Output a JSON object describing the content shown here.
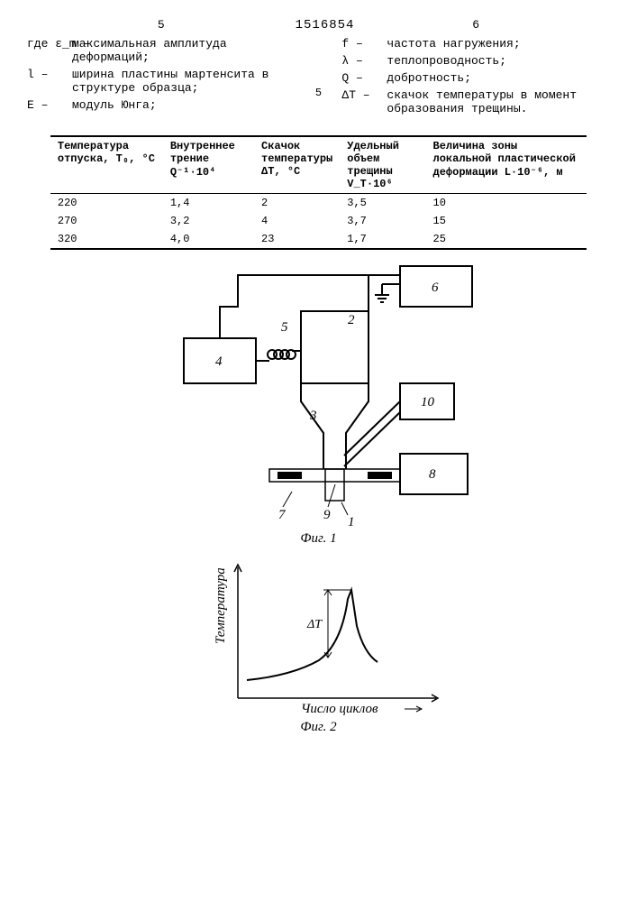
{
  "doc_id": "1516854",
  "left_page_num": "5",
  "right_page_num": "6",
  "defs_left": [
    {
      "sym": "где ε_m –",
      "txt": "максимальная амплитуда деформаций;"
    },
    {
      "sym": "l –",
      "txt": "ширина пластины мартенсита в структуре образца;"
    },
    {
      "sym": "E –",
      "txt": "модуль Юнга;"
    }
  ],
  "defs_right": [
    {
      "sym": "f –",
      "txt": "частота нагружения;"
    },
    {
      "sym": "λ –",
      "txt": "теплопроводность;"
    },
    {
      "sym": "Q –",
      "txt": "добротность;"
    },
    {
      "sym": "ΔT –",
      "txt": "скачок температуры в момент образования трещины."
    }
  ],
  "marginal_num": "5",
  "table": {
    "columns": [
      "Температура отпуска, T₀, °C",
      "Внутреннее трение Q⁻¹·10⁴",
      "Скачок температуры ΔT, °C",
      "Удельный объем трещины V_T·10⁶",
      "Величина зоны локальной пластической деформации L·10⁻⁶, м"
    ],
    "rows": [
      [
        "220",
        "1,4",
        "2",
        "3,5",
        "10"
      ],
      [
        "270",
        "3,2",
        "4",
        "3,7",
        "15"
      ],
      [
        "320",
        "4,0",
        "23",
        "1,7",
        "25"
      ]
    ],
    "col_widths": [
      "21%",
      "17%",
      "16%",
      "16%",
      "30%"
    ]
  },
  "fig1": {
    "caption": "Фиг. 1",
    "box_stroke": "#000",
    "box_stroke_width": 2,
    "labels": [
      "1",
      "2",
      "3",
      "4",
      "5",
      "6",
      "7",
      "8",
      "9",
      "10"
    ],
    "coil_turns": 4
  },
  "fig2": {
    "caption": "Фиг. 2",
    "xlabel": "Число циклов",
    "ylabel": "Температура",
    "delta_label": "ΔT",
    "axis_stroke": "#000",
    "axis_width": 1.5,
    "curve_stroke": "#000",
    "curve_width": 2
  }
}
